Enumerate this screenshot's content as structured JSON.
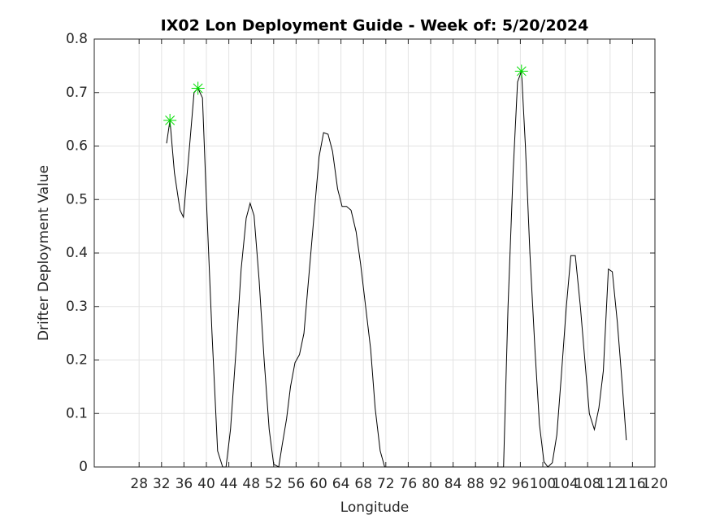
{
  "chart_data": {
    "type": "line",
    "title": "IX02 Lon Deployment Guide - Week of: 5/20/2024",
    "xlabel": "Longitude",
    "ylabel": "Drifter Deployment Value",
    "xlim": [
      20,
      120
    ],
    "xticks": [
      28,
      32,
      36,
      40,
      44,
      48,
      52,
      56,
      60,
      64,
      68,
      72,
      76,
      80,
      84,
      88,
      92,
      96,
      100,
      104,
      108,
      112,
      116,
      120
    ],
    "ylim": [
      0,
      0.8
    ],
    "yticks": [
      0,
      0.1,
      0.2,
      0.3,
      0.4,
      0.5,
      0.6,
      0.7,
      0.8
    ],
    "grid": true,
    "series": [
      {
        "color": "#000000",
        "x": [
          32.9,
          33.5,
          34.3,
          35.3,
          35.9,
          37.0,
          37.8,
          38.5,
          39.3,
          40.0,
          41.0,
          42.0,
          42.9,
          43.5,
          44.3,
          45.3,
          46.2,
          47.1,
          47.8,
          48.5,
          49.4,
          50.3,
          51.2,
          52.0,
          52.9,
          53.5,
          54.3,
          55.0,
          55.8,
          56.6,
          57.4,
          58.3,
          59.2,
          60.1,
          60.9,
          61.7,
          62.5,
          63.4,
          64.2,
          65.0,
          65.8,
          66.7,
          67.5,
          68.4,
          69.3,
          70.1,
          71.0,
          71.8,
          93.0,
          93.8,
          94.7,
          95.5,
          96.2,
          96.9,
          97.7,
          98.6,
          99.4,
          100.2,
          100.9,
          101.7,
          102.5,
          103.3,
          104.2,
          105.0,
          105.8,
          106.7,
          107.5,
          108.3,
          109.2,
          110.0,
          110.8,
          111.7,
          112.4,
          113.3,
          114.2,
          114.9
        ],
        "values": [
          0.605,
          0.648,
          0.55,
          0.48,
          0.467,
          0.6,
          0.7,
          0.708,
          0.69,
          0.5,
          0.25,
          0.03,
          0,
          0,
          0.07,
          0.22,
          0.37,
          0.465,
          0.493,
          0.47,
          0.35,
          0.2,
          0.07,
          0.005,
          0,
          0.04,
          0.09,
          0.15,
          0.195,
          0.21,
          0.25,
          0.36,
          0.47,
          0.58,
          0.625,
          0.622,
          0.59,
          0.52,
          0.487,
          0.487,
          0.48,
          0.44,
          0.38,
          0.3,
          0.22,
          0.11,
          0.03,
          0,
          0,
          0.3,
          0.55,
          0.72,
          0.74,
          0.6,
          0.4,
          0.22,
          0.08,
          0.01,
          0,
          0.008,
          0.06,
          0.17,
          0.3,
          0.395,
          0.395,
          0.3,
          0.2,
          0.1,
          0.07,
          0.11,
          0.18,
          0.37,
          0.365,
          0.27,
          0.15,
          0.05
        ]
      },
      {
        "color": "#00dd00",
        "marker": "asterisk",
        "x": [
          33.5,
          38.5,
          96.2
        ],
        "values": [
          0.648,
          0.708,
          0.74
        ]
      }
    ]
  }
}
